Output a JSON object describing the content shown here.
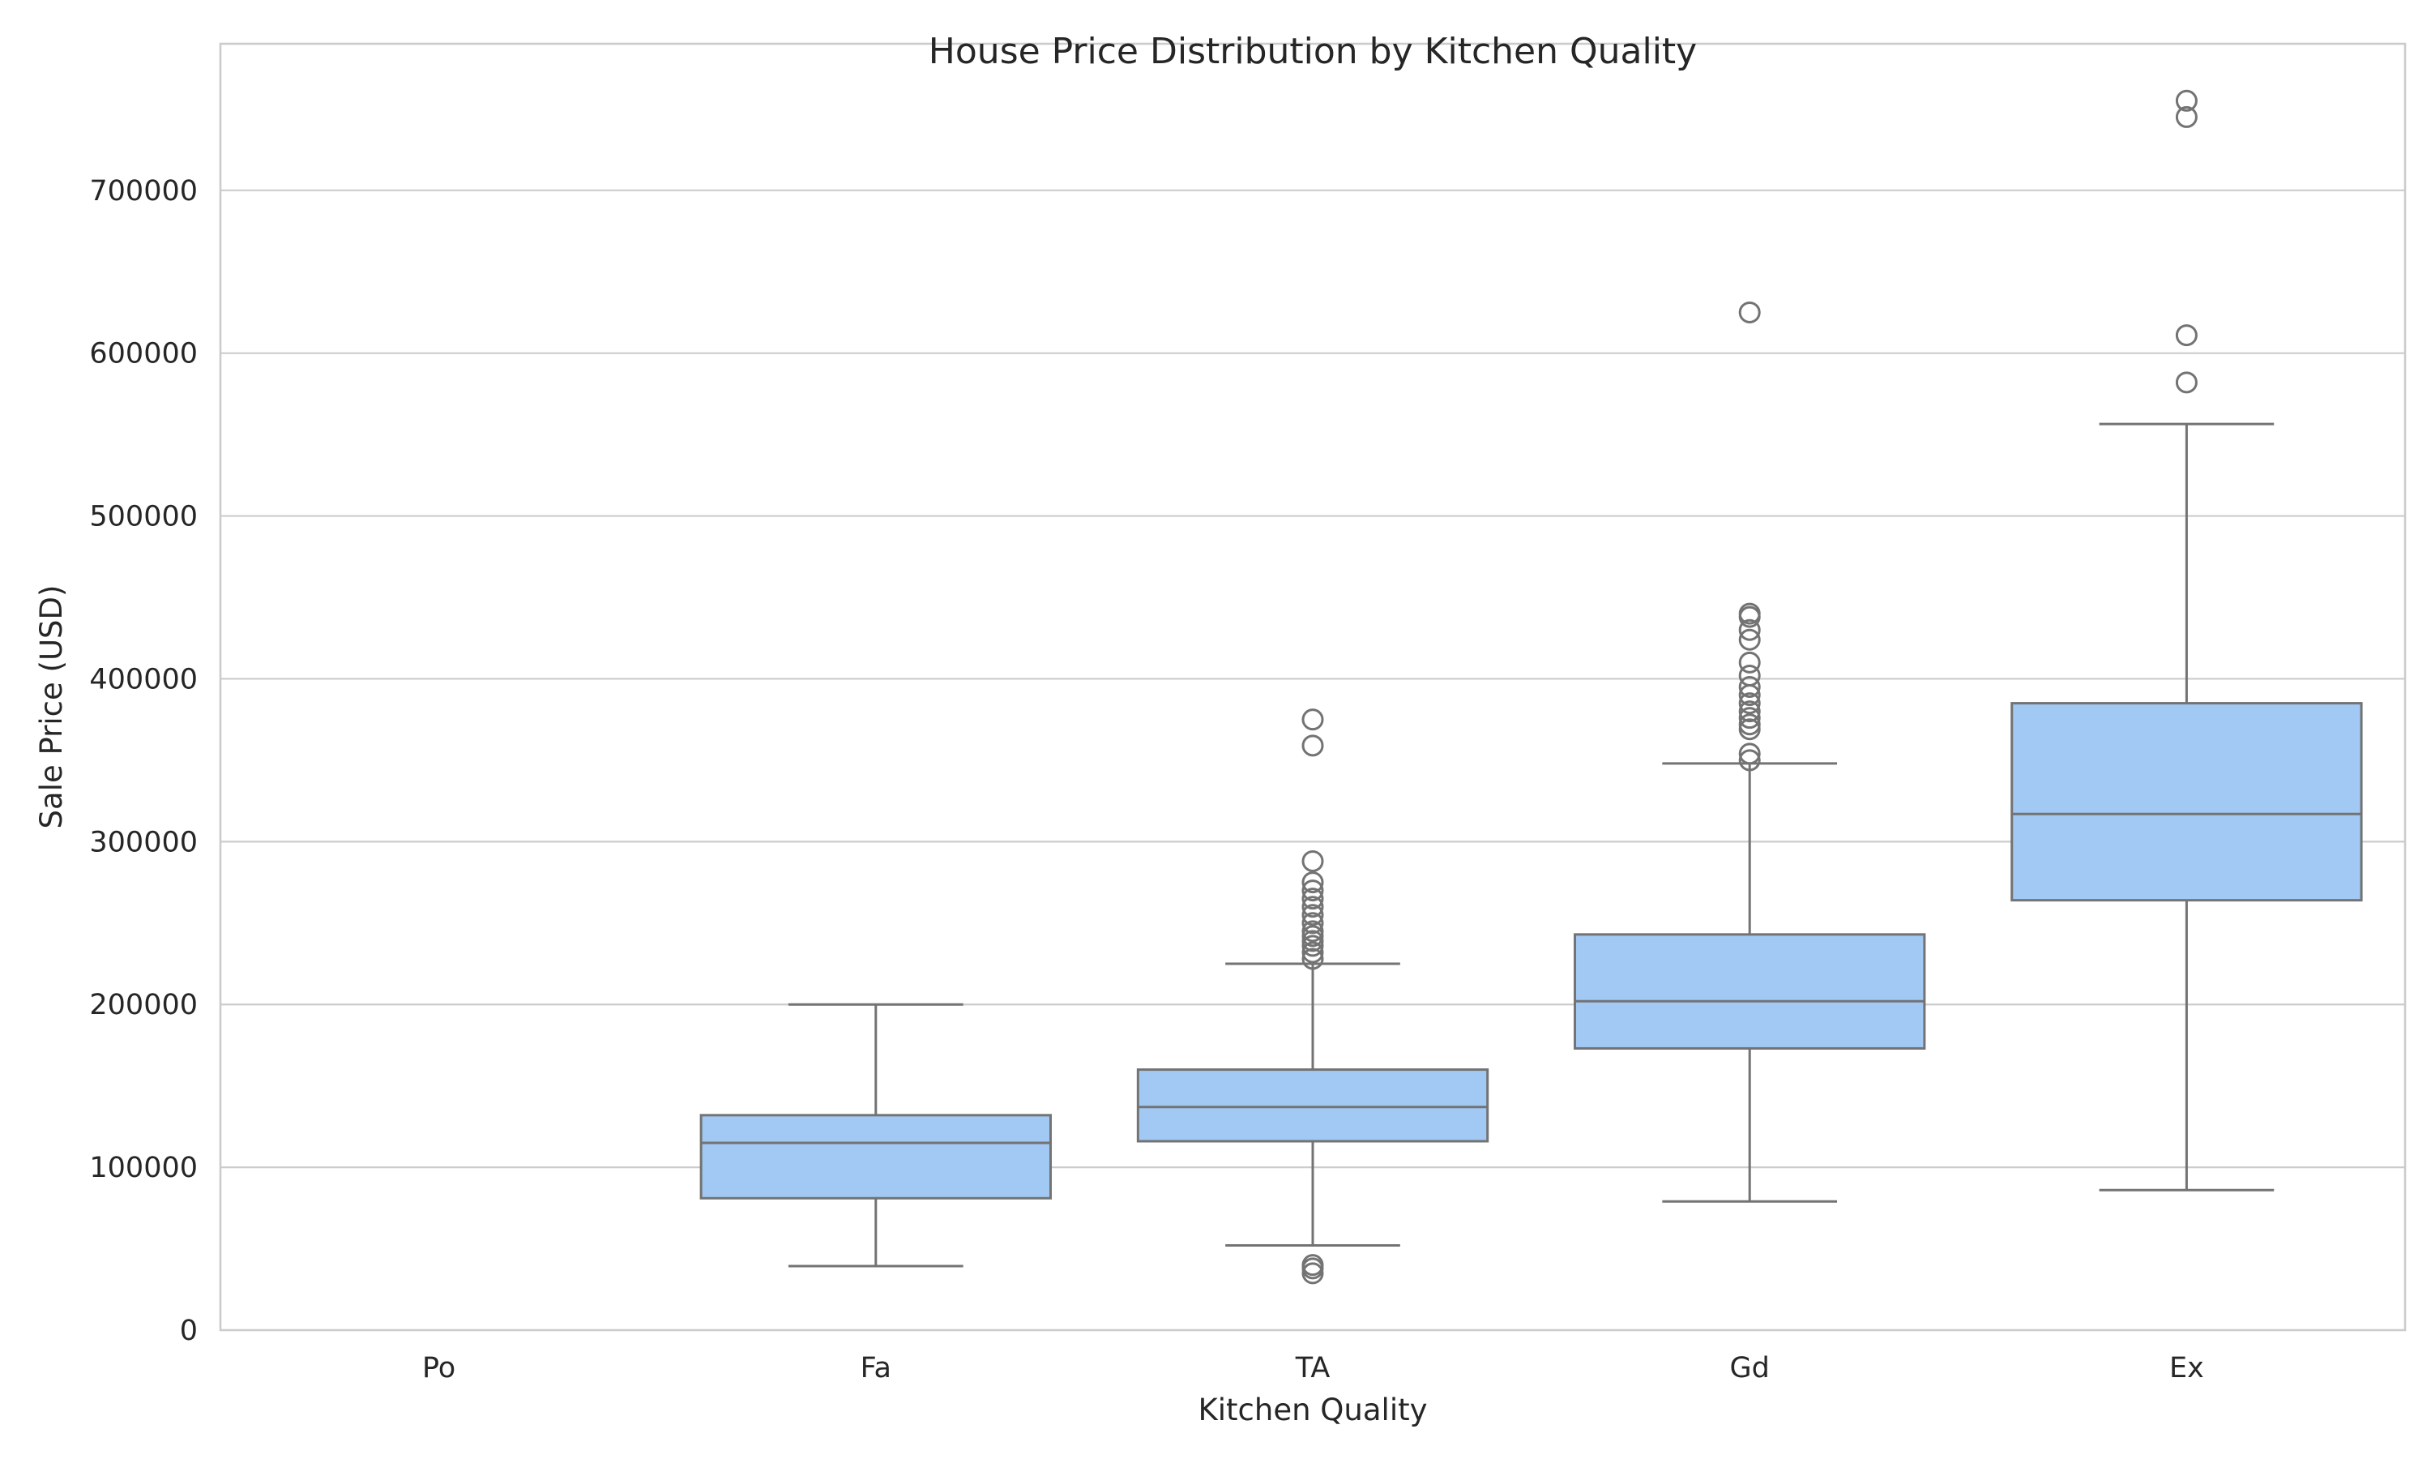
{
  "chart_data": {
    "type": "box",
    "title": "House Price Distribution by Kitchen Quality",
    "xlabel": "Kitchen Quality",
    "ylabel": "Sale Price (USD)",
    "ylim": [
      0,
      790000
    ],
    "yticks": [
      0,
      100000,
      200000,
      300000,
      400000,
      500000,
      600000,
      700000
    ],
    "ytick_labels": [
      "0",
      "100000",
      "200000",
      "300000",
      "400000",
      "500000",
      "600000",
      "700000"
    ],
    "grid": true,
    "colors": {
      "box_fill": "#a1c9f4",
      "box_edge": "#737373",
      "grid": "#cccccc",
      "spine": "#cccccc"
    },
    "categories": [
      "Po",
      "Fa",
      "TA",
      "Gd",
      "Ex"
    ],
    "boxes": [
      {
        "category": "Po",
        "empty": true
      },
      {
        "category": "Fa",
        "whislo": 39300,
        "q1": 81000,
        "med": 115000,
        "q3": 132000,
        "whishi": 200000,
        "fliers": []
      },
      {
        "category": "TA",
        "whislo": 52000,
        "q1": 116000,
        "med": 137000,
        "q3": 160000,
        "whishi": 225000,
        "fliers": [
          34900,
          37900,
          40000,
          228000,
          232000,
          236000,
          239000,
          242000,
          245000,
          250000,
          255000,
          260000,
          265000,
          270000,
          275000,
          288000,
          359000,
          375000
        ]
      },
      {
        "category": "Gd",
        "whislo": 79000,
        "q1": 173000,
        "med": 202000,
        "q3": 243000,
        "whishi": 348000,
        "fliers": [
          350000,
          354000,
          369000,
          372000,
          376000,
          380000,
          385000,
          390000,
          395000,
          402000,
          410000,
          424000,
          430000,
          438000,
          440000,
          625000
        ]
      },
      {
        "category": "Ex",
        "whislo": 86000,
        "q1": 264000,
        "med": 317000,
        "q3": 385000,
        "whishi": 556500,
        "fliers": [
          582000,
          611000,
          745000,
          755000
        ]
      }
    ]
  }
}
